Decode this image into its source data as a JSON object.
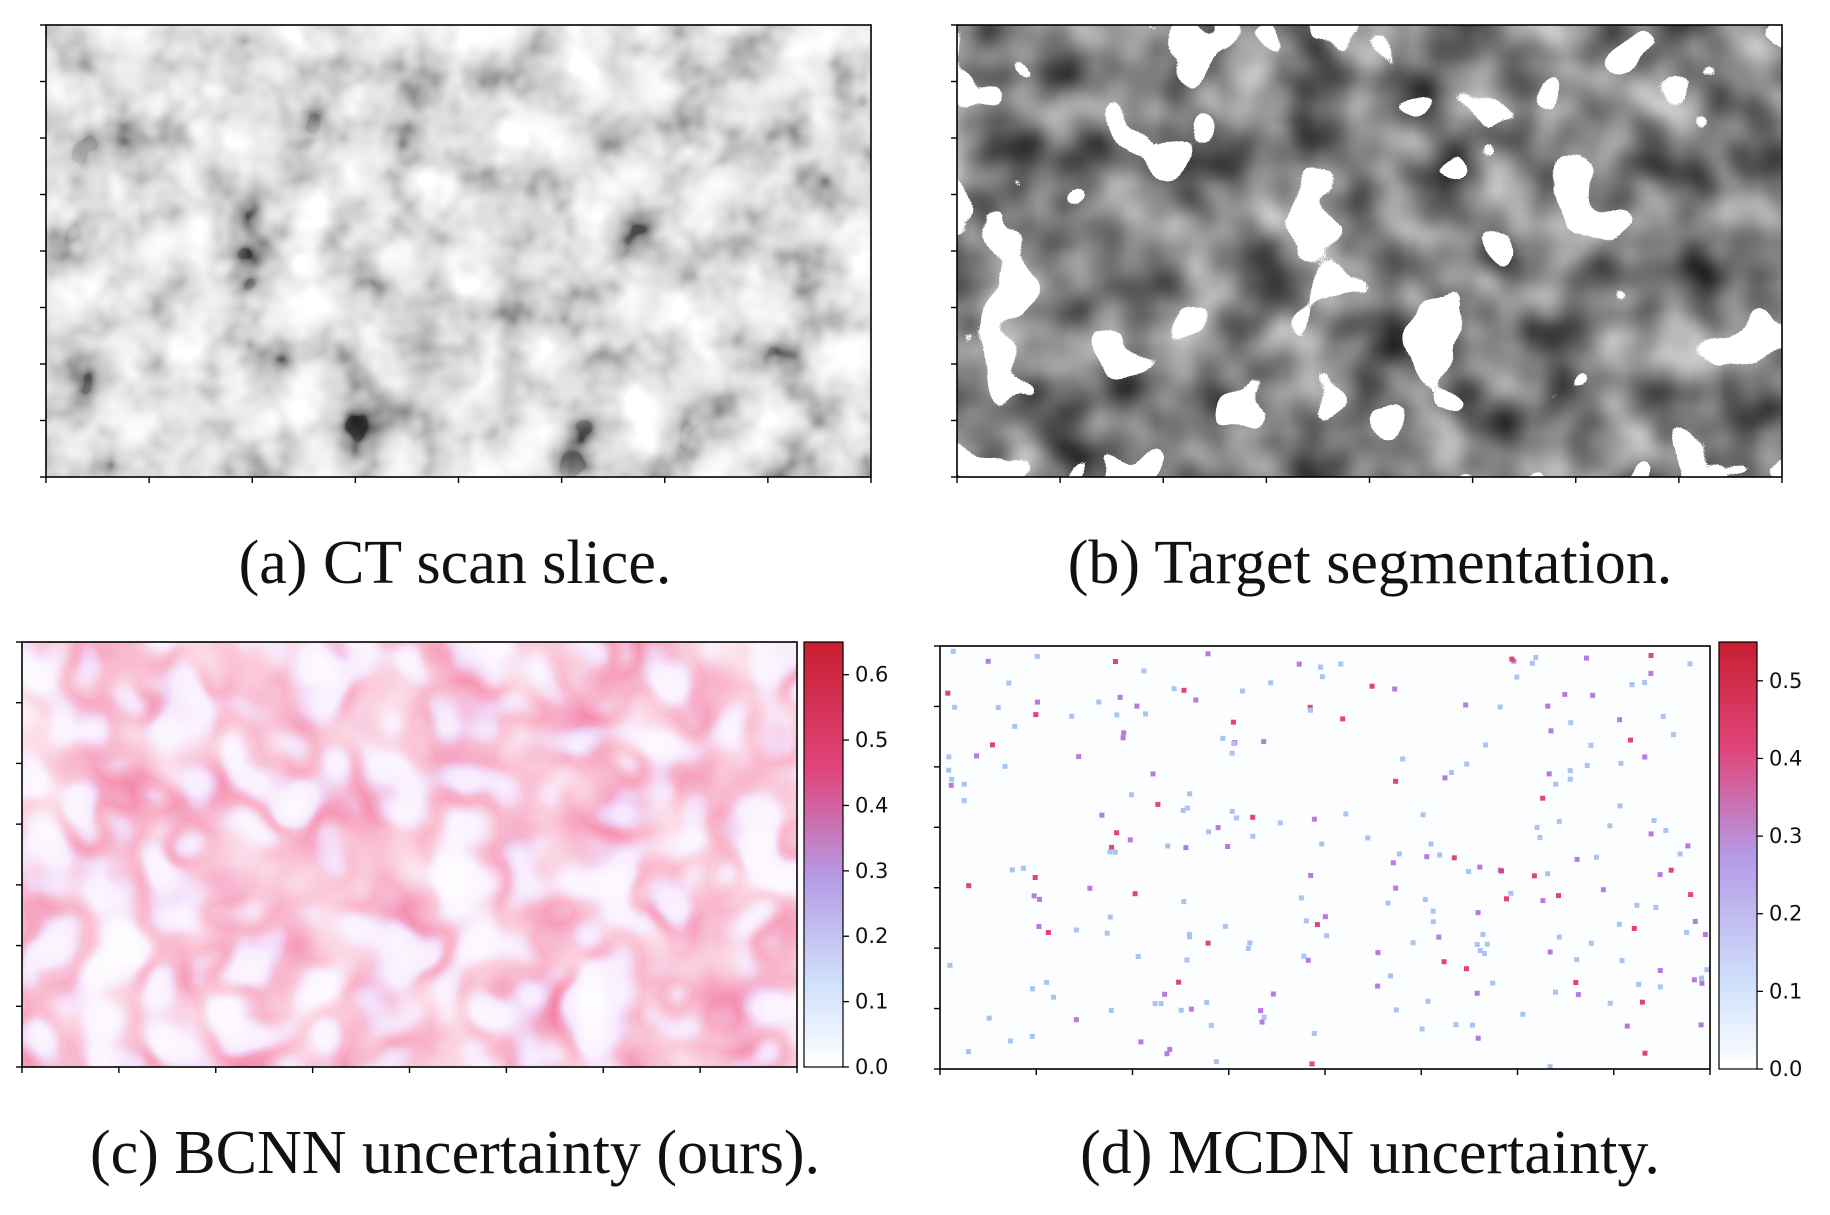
{
  "captions": {
    "a": "(a) CT scan slice.",
    "b": "(b) Target segmentation.",
    "c": "(c) BCNN uncertainty (ours).",
    "d": "(d) MCDN uncertainty."
  },
  "colorbars": {
    "c": {
      "ticks": [
        "0.0",
        "0.1",
        "0.2",
        "0.3",
        "0.4",
        "0.5",
        "0.6"
      ],
      "max": 0.65
    },
    "d": {
      "ticks": [
        "0.0",
        "0.1",
        "0.2",
        "0.3",
        "0.4",
        "0.5"
      ],
      "max": 0.55
    }
  },
  "colormap": [
    "#ffffff",
    "#a9c4f2",
    "#b77be0",
    "#e0457a",
    "#c81e30"
  ]
}
